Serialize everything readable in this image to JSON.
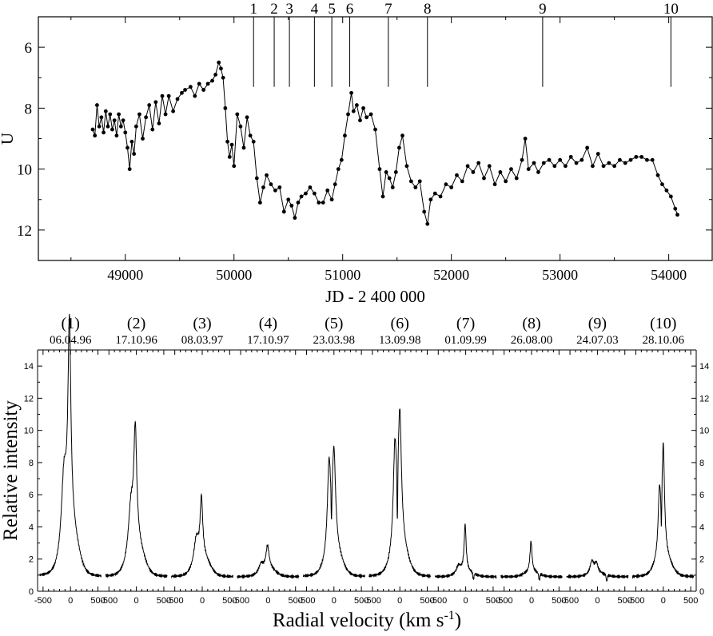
{
  "chart_data": [
    {
      "type": "line",
      "xlabel": "JD - 2 400 000",
      "ylabel": "U",
      "xlim": [
        48200,
        54400
      ],
      "ylim": [
        5.0,
        13.0
      ],
      "y_inverted": true,
      "xticks": [
        49000,
        50000,
        51000,
        52000,
        53000,
        54000
      ],
      "yticks": [
        6,
        8,
        10,
        12
      ],
      "markers": "filled-circle",
      "series": [
        {
          "points": [
            [
              48700,
              8.7
            ],
            [
              48720,
              8.9
            ],
            [
              48740,
              7.9
            ],
            [
              48760,
              8.6
            ],
            [
              48780,
              8.3
            ],
            [
              48800,
              8.8
            ],
            [
              48820,
              8.1
            ],
            [
              48840,
              8.6
            ],
            [
              48860,
              8.2
            ],
            [
              48880,
              8.7
            ],
            [
              48900,
              8.4
            ],
            [
              48920,
              8.9
            ],
            [
              48940,
              8.2
            ],
            [
              48960,
              8.6
            ],
            [
              48980,
              8.4
            ],
            [
              49000,
              8.8
            ],
            [
              49020,
              9.3
            ],
            [
              49040,
              10.0
            ],
            [
              49060,
              9.1
            ],
            [
              49080,
              9.5
            ],
            [
              49100,
              8.6
            ],
            [
              49130,
              8.2
            ],
            [
              49160,
              9.0
            ],
            [
              49190,
              8.3
            ],
            [
              49220,
              7.9
            ],
            [
              49250,
              8.7
            ],
            [
              49280,
              7.8
            ],
            [
              49310,
              8.5
            ],
            [
              49340,
              7.6
            ],
            [
              49370,
              8.2
            ],
            [
              49400,
              7.6
            ],
            [
              49440,
              8.1
            ],
            [
              49480,
              7.7
            ],
            [
              49520,
              7.5
            ],
            [
              49550,
              7.4
            ],
            [
              49600,
              7.3
            ],
            [
              49640,
              7.6
            ],
            [
              49680,
              7.2
            ],
            [
              49720,
              7.4
            ],
            [
              49760,
              7.2
            ],
            [
              49800,
              7.1
            ],
            [
              49830,
              6.9
            ],
            [
              49860,
              6.5
            ],
            [
              49880,
              6.7
            ],
            [
              49900,
              7.0
            ],
            [
              49920,
              8.0
            ],
            [
              49940,
              9.1
            ],
            [
              49960,
              9.6
            ],
            [
              49980,
              9.2
            ],
            [
              50000,
              9.9
            ],
            [
              50030,
              8.2
            ],
            [
              50060,
              8.6
            ],
            [
              50090,
              9.3
            ],
            [
              50120,
              8.3
            ],
            [
              50150,
              8.9
            ],
            [
              50180,
              9.1
            ],
            [
              50210,
              10.3
            ],
            [
              50240,
              11.1
            ],
            [
              50270,
              10.6
            ],
            [
              50300,
              10.2
            ],
            [
              50340,
              10.5
            ],
            [
              50380,
              10.7
            ],
            [
              50420,
              10.6
            ],
            [
              50460,
              11.4
            ],
            [
              50500,
              11.0
            ],
            [
              50530,
              11.2
            ],
            [
              50560,
              11.6
            ],
            [
              50590,
              11.1
            ],
            [
              50620,
              10.9
            ],
            [
              50660,
              10.8
            ],
            [
              50700,
              10.6
            ],
            [
              50740,
              10.8
            ],
            [
              50780,
              11.1
            ],
            [
              50820,
              11.1
            ],
            [
              50860,
              10.7
            ],
            [
              50900,
              11.0
            ],
            [
              50930,
              10.5
            ],
            [
              50960,
              10.0
            ],
            [
              50990,
              9.7
            ],
            [
              51020,
              8.9
            ],
            [
              51050,
              8.2
            ],
            [
              51080,
              7.5
            ],
            [
              51100,
              8.1
            ],
            [
              51130,
              7.9
            ],
            [
              51160,
              8.4
            ],
            [
              51190,
              8.0
            ],
            [
              51220,
              8.3
            ],
            [
              51260,
              8.2
            ],
            [
              51300,
              8.7
            ],
            [
              51340,
              10.0
            ],
            [
              51370,
              10.9
            ],
            [
              51400,
              10.1
            ],
            [
              51430,
              10.3
            ],
            [
              51460,
              10.6
            ],
            [
              51490,
              10.1
            ],
            [
              51520,
              9.3
            ],
            [
              51550,
              8.9
            ],
            [
              51590,
              9.9
            ],
            [
              51630,
              10.4
            ],
            [
              51670,
              10.6
            ],
            [
              51710,
              10.4
            ],
            [
              51750,
              11.4
            ],
            [
              51780,
              11.8
            ],
            [
              51810,
              11.0
            ],
            [
              51850,
              10.8
            ],
            [
              51900,
              10.9
            ],
            [
              51950,
              10.5
            ],
            [
              52000,
              10.6
            ],
            [
              52050,
              10.2
            ],
            [
              52100,
              10.4
            ],
            [
              52150,
              9.9
            ],
            [
              52200,
              10.1
            ],
            [
              52250,
              9.8
            ],
            [
              52300,
              10.3
            ],
            [
              52350,
              9.9
            ],
            [
              52400,
              10.5
            ],
            [
              52450,
              10.1
            ],
            [
              52500,
              10.4
            ],
            [
              52550,
              10.0
            ],
            [
              52600,
              10.3
            ],
            [
              52650,
              9.7
            ],
            [
              52680,
              9.0
            ],
            [
              52710,
              10.0
            ],
            [
              52760,
              9.8
            ],
            [
              52800,
              10.1
            ],
            [
              52850,
              9.8
            ],
            [
              52900,
              9.7
            ],
            [
              52950,
              9.9
            ],
            [
              53000,
              9.7
            ],
            [
              53050,
              9.9
            ],
            [
              53100,
              9.6
            ],
            [
              53150,
              9.8
            ],
            [
              53200,
              9.7
            ],
            [
              53250,
              9.3
            ],
            [
              53300,
              9.9
            ],
            [
              53350,
              9.5
            ],
            [
              53400,
              9.9
            ],
            [
              53450,
              9.8
            ],
            [
              53500,
              9.9
            ],
            [
              53550,
              9.7
            ],
            [
              53600,
              9.8
            ],
            [
              53650,
              9.7
            ],
            [
              53700,
              9.6
            ],
            [
              53750,
              9.6
            ],
            [
              53800,
              9.7
            ],
            [
              53850,
              9.7
            ],
            [
              53900,
              10.2
            ],
            [
              53940,
              10.5
            ],
            [
              53980,
              10.7
            ],
            [
              54020,
              10.9
            ],
            [
              54060,
              11.3
            ],
            [
              54080,
              11.5
            ]
          ]
        }
      ],
      "epochs": [
        {
          "label": "1",
          "x": 50180
        },
        {
          "label": "2",
          "x": 50370
        },
        {
          "label": "3",
          "x": 50510
        },
        {
          "label": "4",
          "x": 50740
        },
        {
          "label": "5",
          "x": 50900
        },
        {
          "label": "6",
          "x": 51065
        },
        {
          "label": "7",
          "x": 51420
        },
        {
          "label": "8",
          "x": 51780
        },
        {
          "label": "9",
          "x": 52840
        },
        {
          "label": "10",
          "x": 54020
        }
      ]
    },
    {
      "type": "line",
      "xlabel": "Radial velocity (km s",
      "xlabel_sup": "-1",
      "xlabel_close": ")",
      "ylabel": "Relative intensity",
      "xlim": [
        -600,
        600
      ],
      "ylim": [
        0,
        15
      ],
      "xticklabels": [
        "-500",
        "0",
        "500"
      ],
      "yticks": [
        0,
        2,
        4,
        6,
        8,
        10,
        12,
        14
      ],
      "panels": [
        {
          "id": "(1)",
          "date": "06.04.96",
          "peaks": [
            {
              "v": -120,
              "h": 4.3,
              "w": 55
            },
            {
              "v": -20,
              "h": 12.6,
              "w": 32
            }
          ],
          "wing": 2.8,
          "abs": []
        },
        {
          "id": "(2)",
          "date": "17.10.96",
          "peaks": [
            {
              "v": -100,
              "h": 2.8,
              "w": 55
            },
            {
              "v": -20,
              "h": 6.9,
              "w": 32
            }
          ],
          "wing": 1.9,
          "abs": []
        },
        {
          "id": "(3)",
          "date": "08.03.97",
          "peaks": [
            {
              "v": -110,
              "h": 1.5,
              "w": 50
            },
            {
              "v": -15,
              "h": 3.6,
              "w": 28
            }
          ],
          "wing": 1.2,
          "abs": []
        },
        {
          "id": "(4)",
          "date": "17.10.97",
          "peaks": [
            {
              "v": -130,
              "h": 0.5,
              "w": 45
            },
            {
              "v": -10,
              "h": 1.4,
              "w": 35
            }
          ],
          "wing": 0.5,
          "abs": []
        },
        {
          "id": "(5)",
          "date": "23.03.98",
          "peaks": [
            {
              "v": -90,
              "h": 5.4,
              "w": 35
            },
            {
              "v": 0,
              "h": 5.8,
              "w": 35
            }
          ],
          "wing": 1.6,
          "abs": [
            {
              "v": -45,
              "d": 2.2,
              "w": 10
            }
          ]
        },
        {
          "id": "(6)",
          "date": "13.09.98",
          "peaks": [
            {
              "v": -90,
              "h": 6.1,
              "w": 35
            },
            {
              "v": 0,
              "h": 7.8,
              "w": 35
            }
          ],
          "wing": 1.9,
          "abs": [
            {
              "v": -45,
              "d": 3.5,
              "w": 10
            }
          ]
        },
        {
          "id": "(7)",
          "date": "01.09.99",
          "peaks": [
            {
              "v": -130,
              "h": 0.5,
              "w": 50
            },
            {
              "v": -10,
              "h": 2.9,
              "w": 22
            }
          ],
          "wing": 0.3,
          "abs": [
            {
              "v": 140,
              "d": 0.4,
              "w": 15
            }
          ]
        },
        {
          "id": "(8)",
          "date": "26.08.00",
          "peaks": [
            {
              "v": -10,
              "h": 1.9,
              "w": 22
            }
          ],
          "wing": 0.3,
          "abs": [
            {
              "v": 140,
              "d": 0.4,
              "w": 15
            }
          ]
        },
        {
          "id": "(9)",
          "date": "24.07.03",
          "peaks": [
            {
              "v": -100,
              "h": 0.8,
              "w": 40
            },
            {
              "v": -20,
              "h": 0.6,
              "w": 35
            }
          ],
          "wing": 0.2,
          "abs": [
            {
              "v": 170,
              "d": 0.4,
              "w": 15
            }
          ]
        },
        {
          "id": "(10)",
          "date": "28.10.06",
          "peaks": [
            {
              "v": -70,
              "h": 3.8,
              "w": 28
            },
            {
              "v": 0,
              "h": 6.5,
              "w": 26
            }
          ],
          "wing": 1.3,
          "abs": [
            {
              "v": -35,
              "d": 2.0,
              "w": 8
            }
          ]
        }
      ]
    }
  ]
}
